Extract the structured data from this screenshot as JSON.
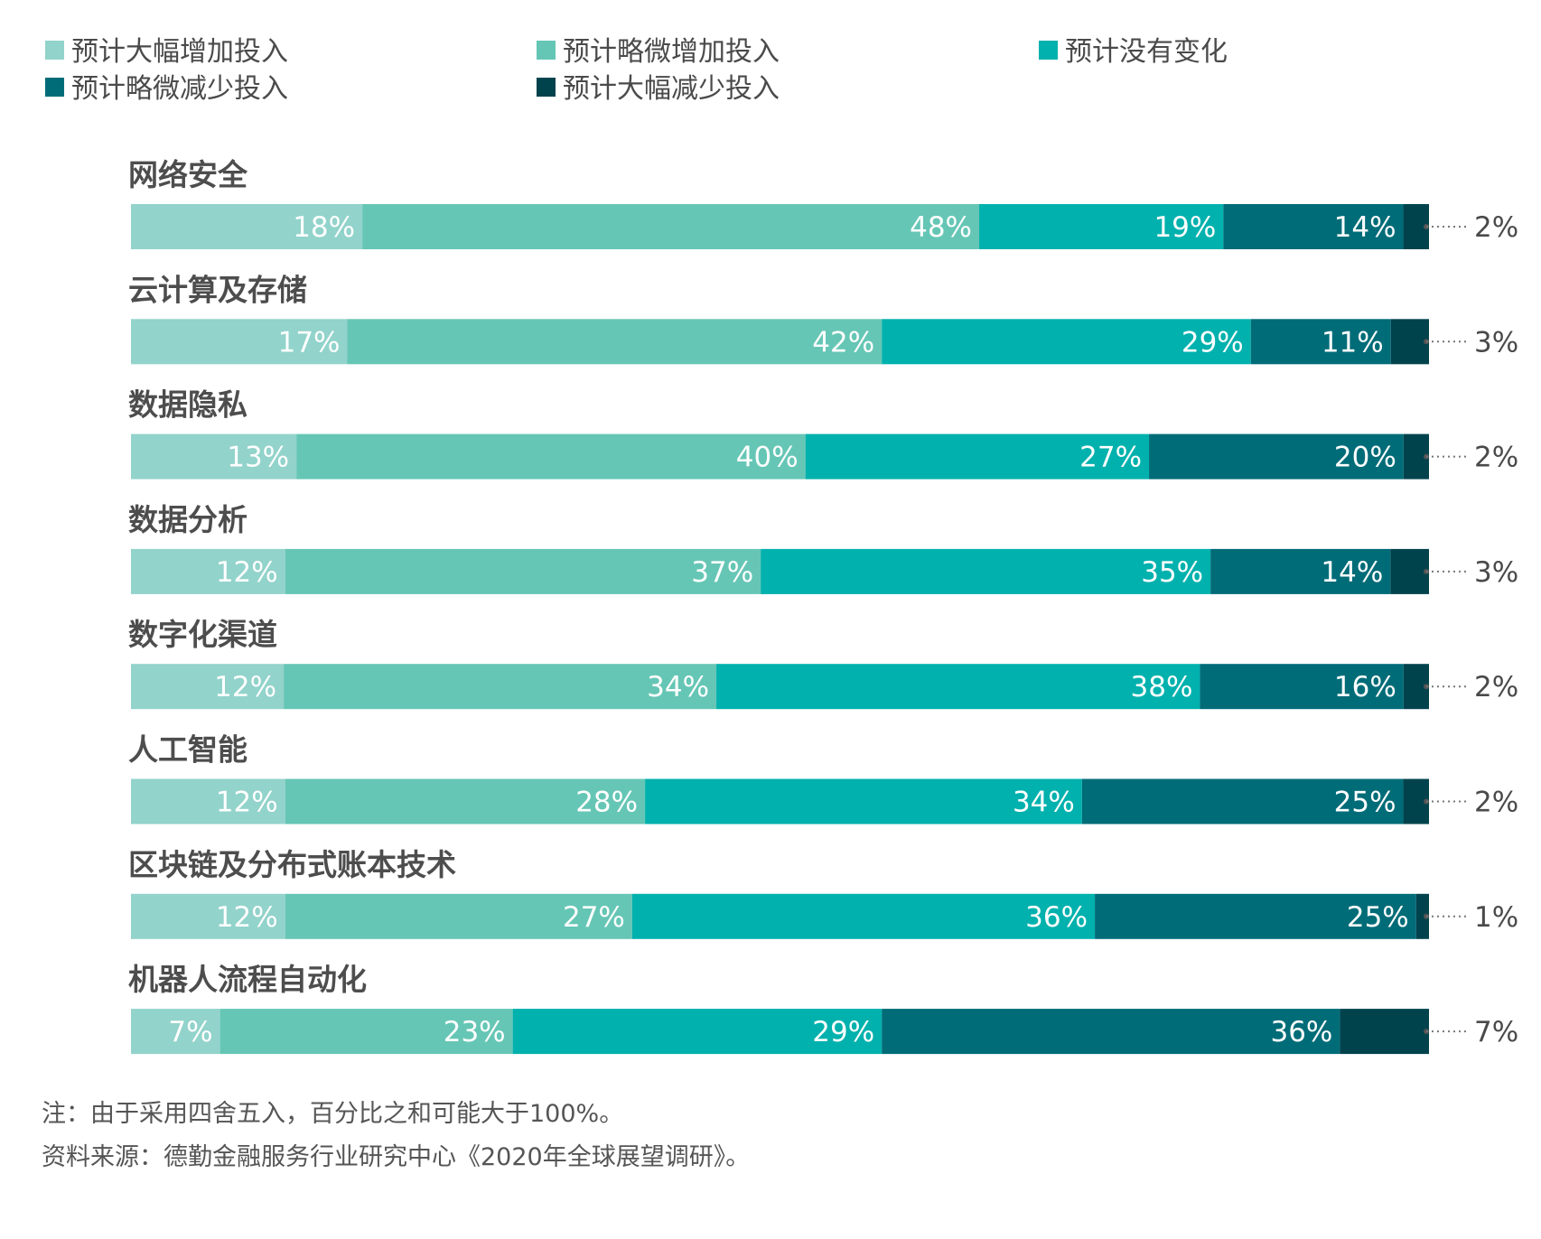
{
  "chart_data": {
    "type": "bar",
    "orientation": "horizontal",
    "stacked": true,
    "unit": "%",
    "legend_position": "top",
    "categories": [
      "网络安全",
      "云计算及存储",
      "数据隐私",
      "数据分析",
      "数字化渠道",
      "人工智能",
      "区块链及分布式账本技术",
      "机器人流程自动化"
    ],
    "series": [
      {
        "name": "预计大幅增加投入",
        "color": "#92d3cb",
        "values": [
          18,
          17,
          13,
          12,
          12,
          12,
          12,
          7
        ]
      },
      {
        "name": "预计略微增加投入",
        "color": "#66c6b5",
        "values": [
          48,
          42,
          40,
          37,
          34,
          28,
          27,
          23
        ]
      },
      {
        "name": "预计没有变化",
        "color": "#00b1ad",
        "values": [
          19,
          29,
          27,
          35,
          38,
          34,
          36,
          29
        ]
      },
      {
        "name": "预计略微减少投入",
        "color": "#006c78",
        "values": [
          14,
          11,
          20,
          14,
          16,
          25,
          25,
          36
        ]
      },
      {
        "name": "预计大幅减少投入",
        "color": "#00434d",
        "values": [
          2,
          3,
          2,
          3,
          2,
          2,
          1,
          7
        ]
      }
    ]
  },
  "notes": {
    "note": "注：由于采用四舍五入，百分比之和可能大于100%。",
    "source": "资料来源：德勤金融服务行业研究中心《2020年全球展望调研》。"
  }
}
